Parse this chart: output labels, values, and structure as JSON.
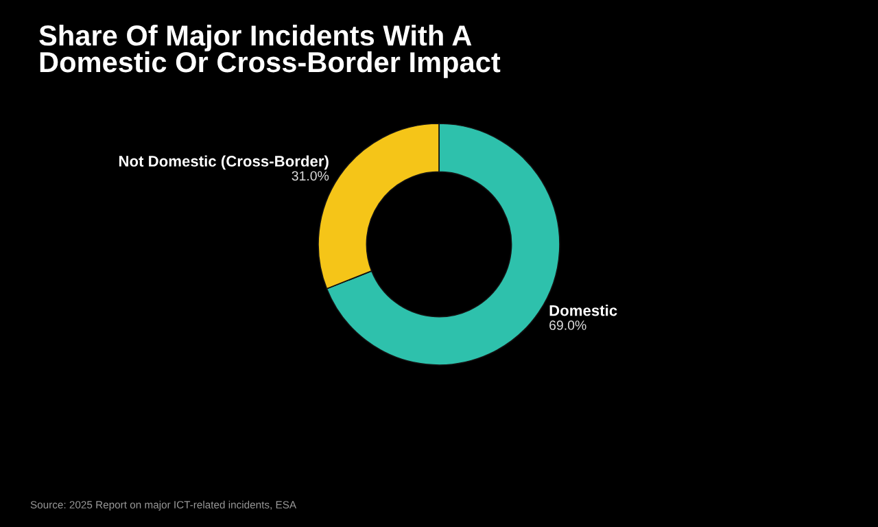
{
  "chart_data": {
    "type": "donut",
    "title": "Share Of Major Incidents With A\nDomestic Or Cross-Border Impact",
    "categories": [
      "Domestic",
      "Not Domestic (Cross-Border)"
    ],
    "values": [
      69,
      31
    ],
    "colors": [
      "#2ec1ac",
      "#f5c518"
    ],
    "value_labels": [
      "69.0%",
      "31.0%"
    ],
    "annotations": [
      "Source: 2025 Report on major ICT-related incidents, ESA"
    ]
  }
}
